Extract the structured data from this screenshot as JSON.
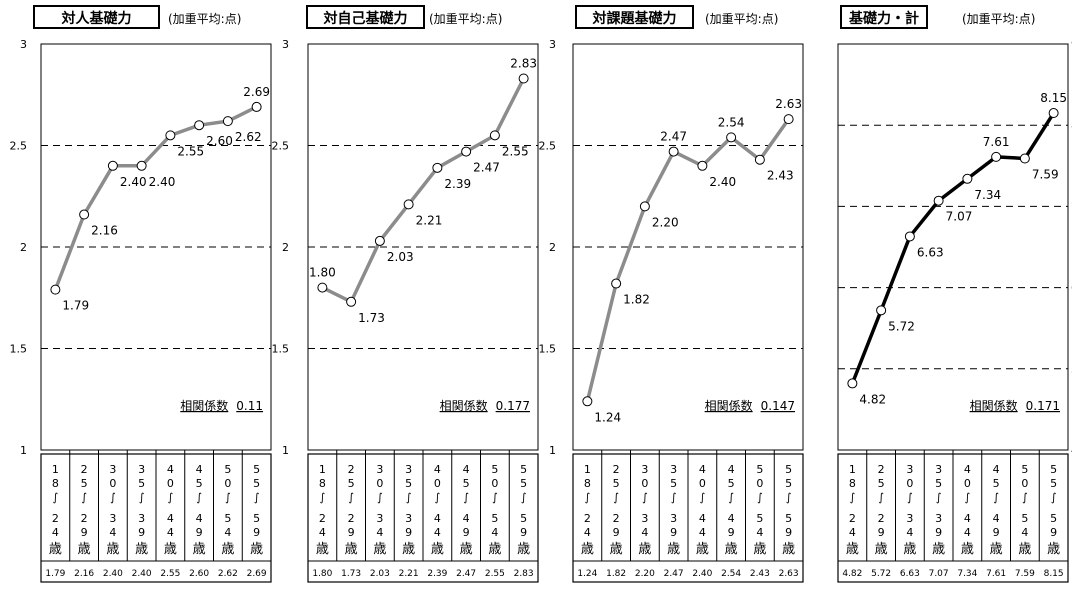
{
  "age_groups": [
    {
      "top": [
        "1",
        "8",
        "∫"
      ],
      "bottom": [
        "2",
        "4",
        "歳"
      ]
    },
    {
      "top": [
        "2",
        "5",
        "∫"
      ],
      "bottom": [
        "2",
        "9",
        "歳"
      ]
    },
    {
      "top": [
        "3",
        "0",
        "∫"
      ],
      "bottom": [
        "3",
        "4",
        "歳"
      ]
    },
    {
      "top": [
        "3",
        "5",
        "∫"
      ],
      "bottom": [
        "3",
        "9",
        "歳"
      ]
    },
    {
      "top": [
        "4",
        "0",
        "∫"
      ],
      "bottom": [
        "4",
        "4",
        "歳"
      ]
    },
    {
      "top": [
        "4",
        "5",
        "∫"
      ],
      "bottom": [
        "4",
        "9",
        "歳"
      ]
    },
    {
      "top": [
        "5",
        "0",
        "∫"
      ],
      "bottom": [
        "5",
        "4",
        "歳"
      ]
    },
    {
      "top": [
        "5",
        "5",
        "∫"
      ],
      "bottom": [
        "5",
        "9",
        "歳"
      ]
    }
  ],
  "chart_data": [
    {
      "type": "line",
      "title": "対人基礎力",
      "unit_note": "(加重平均:点)",
      "categories": [
        "18〜24歳",
        "25〜29歳",
        "30〜34歳",
        "35〜39歳",
        "40〜44歳",
        "45〜49歳",
        "50〜54歳",
        "55〜59歳"
      ],
      "values": [
        1.79,
        2.16,
        2.4,
        2.4,
        2.55,
        2.6,
        2.62,
        2.69
      ],
      "value_labels": [
        "1.79",
        "2.16",
        "2.40",
        "2.40",
        "2.55",
        "2.60",
        "2.62",
        "2.69"
      ],
      "table_values": [
        "1.79",
        "2.16",
        "2.40",
        "2.40",
        "2.55",
        "2.60",
        "2.62",
        "2.69"
      ],
      "ylim": [
        1,
        3
      ],
      "yticks": [
        "1",
        "1.5",
        "2",
        "2.5",
        "3"
      ],
      "correlation_label": "相関係数",
      "correlation": "0.11",
      "line_color": "#8c8c8c",
      "grid": true
    },
    {
      "type": "line",
      "title": "対自己基礎力",
      "unit_note": "(加重平均:点)",
      "categories": [
        "18〜24歳",
        "25〜29歳",
        "30〜34歳",
        "35〜39歳",
        "40〜44歳",
        "45〜49歳",
        "50〜54歳",
        "55〜59歳"
      ],
      "values": [
        1.8,
        1.73,
        2.03,
        2.21,
        2.39,
        2.47,
        2.55,
        2.83
      ],
      "value_labels": [
        "1.80",
        "1.73",
        "2.03",
        "2.21",
        "2.39",
        "2.47",
        "2.55",
        "2.83"
      ],
      "table_values": [
        "1.80",
        "1.73",
        "2.03",
        "2.21",
        "2.39",
        "2.47",
        "2.55",
        "2.83"
      ],
      "ylim": [
        1,
        3
      ],
      "yticks": [
        "1",
        "1.5",
        "2",
        "2.5",
        "3"
      ],
      "correlation_label": "相関係数",
      "correlation": "0.177",
      "line_color": "#8c8c8c",
      "grid": true
    },
    {
      "type": "line",
      "title": "対課題基礎力",
      "unit_note": "(加重平均:点)",
      "categories": [
        "18〜24歳",
        "25〜29歳",
        "30〜34歳",
        "35〜39歳",
        "40〜44歳",
        "45〜49歳",
        "50〜54歳",
        "55〜59歳"
      ],
      "values": [
        1.24,
        1.82,
        2.2,
        2.47,
        2.4,
        2.54,
        2.43,
        2.63
      ],
      "value_labels": [
        "1.24",
        "1.82",
        "2.20",
        "2.47",
        "2.40",
        "2.54",
        "2.43",
        "2.63"
      ],
      "table_values": [
        "1.24",
        "1.82",
        "2.20",
        "2.47",
        "2.40",
        "2.54",
        "2.43",
        "2.63"
      ],
      "ylim": [
        1,
        3
      ],
      "yticks": [
        "1",
        "1.5",
        "2",
        "2.5",
        "3"
      ],
      "correlation_label": "相関係数",
      "correlation": "0.147",
      "line_color": "#8c8c8c",
      "grid": true
    },
    {
      "type": "line",
      "title": "基礎力・計",
      "unit_note": "(加重平均:点)",
      "categories": [
        "18〜24歳",
        "25〜29歳",
        "30〜34歳",
        "35〜39歳",
        "40〜44歳",
        "45〜49歳",
        "50〜54歳",
        "55〜59歳"
      ],
      "values": [
        4.82,
        5.72,
        6.63,
        7.07,
        7.34,
        7.61,
        7.59,
        8.15
      ],
      "value_labels": [
        "4.82",
        "5.72",
        "6.63",
        "7.07",
        "7.34",
        "7.61",
        "7.59",
        "8.15"
      ],
      "table_values": [
        "4.82",
        "5.72",
        "6.63",
        "7.07",
        "7.34",
        "7.61",
        "7.59",
        "8.15"
      ],
      "ylim": [
        4,
        9
      ],
      "yticks": [
        "4",
        "5",
        "6",
        "7",
        "8",
        "9"
      ],
      "correlation_label": "相関係数",
      "correlation": "0.171",
      "line_color": "#000000",
      "grid": true
    }
  ]
}
